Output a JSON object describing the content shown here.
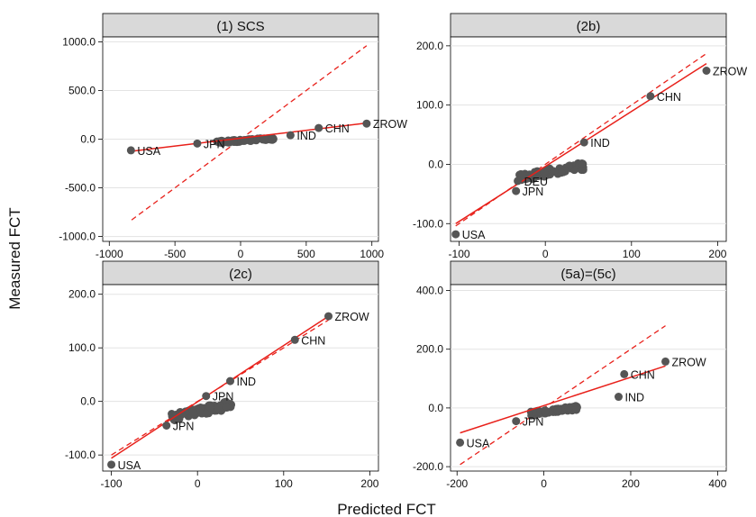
{
  "figure": {
    "xlabel": "Predicted FCT",
    "ylabel": "Measured FCT"
  },
  "chart_data": [
    {
      "type": "scatter",
      "title": "(1) SCS",
      "xlim": [
        -1050,
        1050
      ],
      "ylim": [
        -1050,
        1050
      ],
      "xticks": [
        -1000,
        -500,
        0,
        500,
        1000
      ],
      "xtick_labels": [
        "-1000",
        "-500",
        "0",
        "500",
        "1000"
      ],
      "yticks": [
        -1000,
        -500,
        0,
        500,
        1000
      ],
      "ytick_labels": [
        "-1000.0",
        "-500.0",
        "0.0",
        "500.0",
        "1000.0"
      ],
      "grid": true,
      "points": [
        {
          "x": -835,
          "y": -115,
          "label": "USA"
        },
        {
          "x": -330,
          "y": -45,
          "label": "JPN"
        },
        {
          "x": 380,
          "y": 40,
          "label": "IND"
        },
        {
          "x": 595,
          "y": 115,
          "label": "CHN"
        },
        {
          "x": 960,
          "y": 160,
          "label": "ZROW"
        }
      ],
      "cluster": {
        "x_range": [
          -180,
          260
        ],
        "y_range": [
          -30,
          30
        ]
      },
      "fit_line": {
        "x": [
          -835,
          960
        ],
        "y": [
          -125,
          165
        ]
      },
      "diagonal": {
        "x": [
          -830,
          960
        ],
        "y": [
          -830,
          960
        ]
      }
    },
    {
      "type": "scatter",
      "title": "(2b)",
      "xlim": [
        -110,
        210
      ],
      "ylim": [
        -130,
        215
      ],
      "xticks": [
        -100,
        0,
        100,
        200
      ],
      "xtick_labels": [
        "-100",
        "0",
        "100",
        "200"
      ],
      "yticks": [
        -100,
        0,
        100,
        200
      ],
      "ytick_labels": [
        "-100.0",
        "0.0",
        "100.0",
        "200.0"
      ],
      "grid": true,
      "points": [
        {
          "x": -104,
          "y": -118,
          "label": "USA"
        },
        {
          "x": -34,
          "y": -45,
          "label": "JPN"
        },
        {
          "x": -32,
          "y": -28,
          "label": "DEU"
        },
        {
          "x": 45,
          "y": 37,
          "label": "IND"
        },
        {
          "x": 122,
          "y": 115,
          "label": "CHN"
        },
        {
          "x": 187,
          "y": 158,
          "label": "ZROW"
        }
      ],
      "cluster": {
        "x_range": [
          -30,
          45
        ],
        "y_range": [
          -22,
          10
        ]
      },
      "fit_line": {
        "x": [
          -104,
          187
        ],
        "y": [
          -100,
          170
        ]
      },
      "diagonal": {
        "x": [
          -104,
          187
        ],
        "y": [
          -104,
          187
        ]
      }
    },
    {
      "type": "scatter",
      "title": "(2c)",
      "xlim": [
        -110,
        210
      ],
      "ylim": [
        -130,
        218
      ],
      "xticks": [
        -100,
        0,
        100,
        200
      ],
      "xtick_labels": [
        "-100",
        "0",
        "100",
        "200"
      ],
      "yticks": [
        -100,
        0,
        100,
        200
      ],
      "ytick_labels": [
        "-100.0",
        "0.0",
        "100.0",
        "200.0"
      ],
      "grid": true,
      "points": [
        {
          "x": -100,
          "y": -118,
          "label": "USA"
        },
        {
          "x": -36,
          "y": -45,
          "label": "JPN"
        },
        {
          "x": 10,
          "y": 10,
          "label": "JPN"
        },
        {
          "x": 38,
          "y": 38,
          "label": "IND"
        },
        {
          "x": 113,
          "y": 115,
          "label": "CHN"
        },
        {
          "x": 152,
          "y": 159,
          "label": "ZROW"
        }
      ],
      "cluster": {
        "x_range": [
          -30,
          40
        ],
        "y_range": [
          -30,
          10
        ]
      },
      "fit_line": {
        "x": [
          -100,
          152
        ],
        "y": [
          -106,
          159
        ]
      },
      "diagonal": {
        "x": [
          -100,
          152
        ],
        "y": [
          -100,
          152
        ]
      }
    },
    {
      "type": "scatter",
      "title": "(5a)=(5c)",
      "xlim": [
        -215,
        420
      ],
      "ylim": [
        -215,
        420
      ],
      "xticks": [
        -200,
        0,
        200,
        400
      ],
      "xtick_labels": [
        "-200",
        "0",
        "200",
        "400"
      ],
      "yticks": [
        -200,
        0,
        200,
        400
      ],
      "ytick_labels": [
        "-200.0",
        "0.0",
        "200.0",
        "400.0"
      ],
      "grid": true,
      "points": [
        {
          "x": -193,
          "y": -118,
          "label": "USA"
        },
        {
          "x": -64,
          "y": -45,
          "label": "JPN"
        },
        {
          "x": 172,
          "y": 38,
          "label": "IND"
        },
        {
          "x": 185,
          "y": 115,
          "label": "CHN"
        },
        {
          "x": 280,
          "y": 158,
          "label": "ZROW"
        }
      ],
      "cluster": {
        "x_range": [
          -30,
          80
        ],
        "y_range": [
          -20,
          15
        ]
      },
      "fit_line": {
        "x": [
          -193,
          280
        ],
        "y": [
          -85,
          143
        ]
      },
      "diagonal": {
        "x": [
          -193,
          280
        ],
        "y": [
          -193,
          280
        ]
      }
    }
  ]
}
